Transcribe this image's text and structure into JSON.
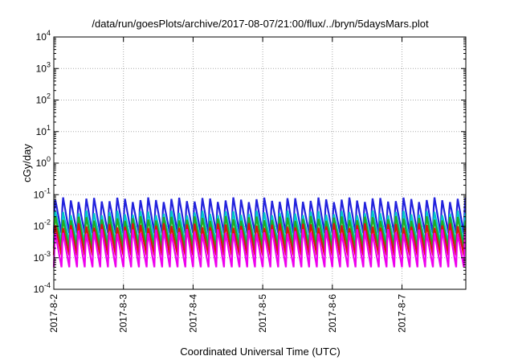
{
  "chart_data": {
    "type": "line",
    "title": "/data/run/goesPlots/archive/2017-08-07/21:00/flux/../bryn/5daysMars.plot",
    "xlabel": "Coordinated Universal Time (UTC)",
    "ylabel": "cGy/day",
    "yscale": "log",
    "ylim": [
      0.0001,
      10000
    ],
    "y_ticks": [
      {
        "base": "10",
        "exp": "-4",
        "value": 0.0001
      },
      {
        "base": "10",
        "exp": "-3",
        "value": 0.001
      },
      {
        "base": "10",
        "exp": "-2",
        "value": 0.01
      },
      {
        "base": "10",
        "exp": "-1",
        "value": 0.1
      },
      {
        "base": "10",
        "exp": "0",
        "value": 1
      },
      {
        "base": "10",
        "exp": "1",
        "value": 10
      },
      {
        "base": "10",
        "exp": "2",
        "value": 100
      },
      {
        "base": "10",
        "exp": "3",
        "value": 1000
      },
      {
        "base": "10",
        "exp": "4",
        "value": 10000
      }
    ],
    "x_ticks": [
      "2017-8-2",
      "2017-8-3",
      "2017-8-4",
      "2017-8-5",
      "2017-8-6",
      "2017-8-7"
    ],
    "xlim": [
      "2017-08-02 00:00",
      "2017-08-07 22:00"
    ],
    "grid": true,
    "legend": "none",
    "oscillation_cycles_per_day": 9,
    "series": [
      {
        "color": "#2222dd",
        "peak": 0.08,
        "trough": 0.006
      },
      {
        "color": "#00c8c8",
        "peak": 0.03,
        "trough": 0.003
      },
      {
        "color": "#22aa22",
        "peak": 0.02,
        "trough": 0.002
      },
      {
        "color": "#dd1111",
        "peak": 0.012,
        "trough": 0.0012
      },
      {
        "color": "#ee00ee",
        "peak": 0.008,
        "trough": 0.0005
      }
    ]
  }
}
